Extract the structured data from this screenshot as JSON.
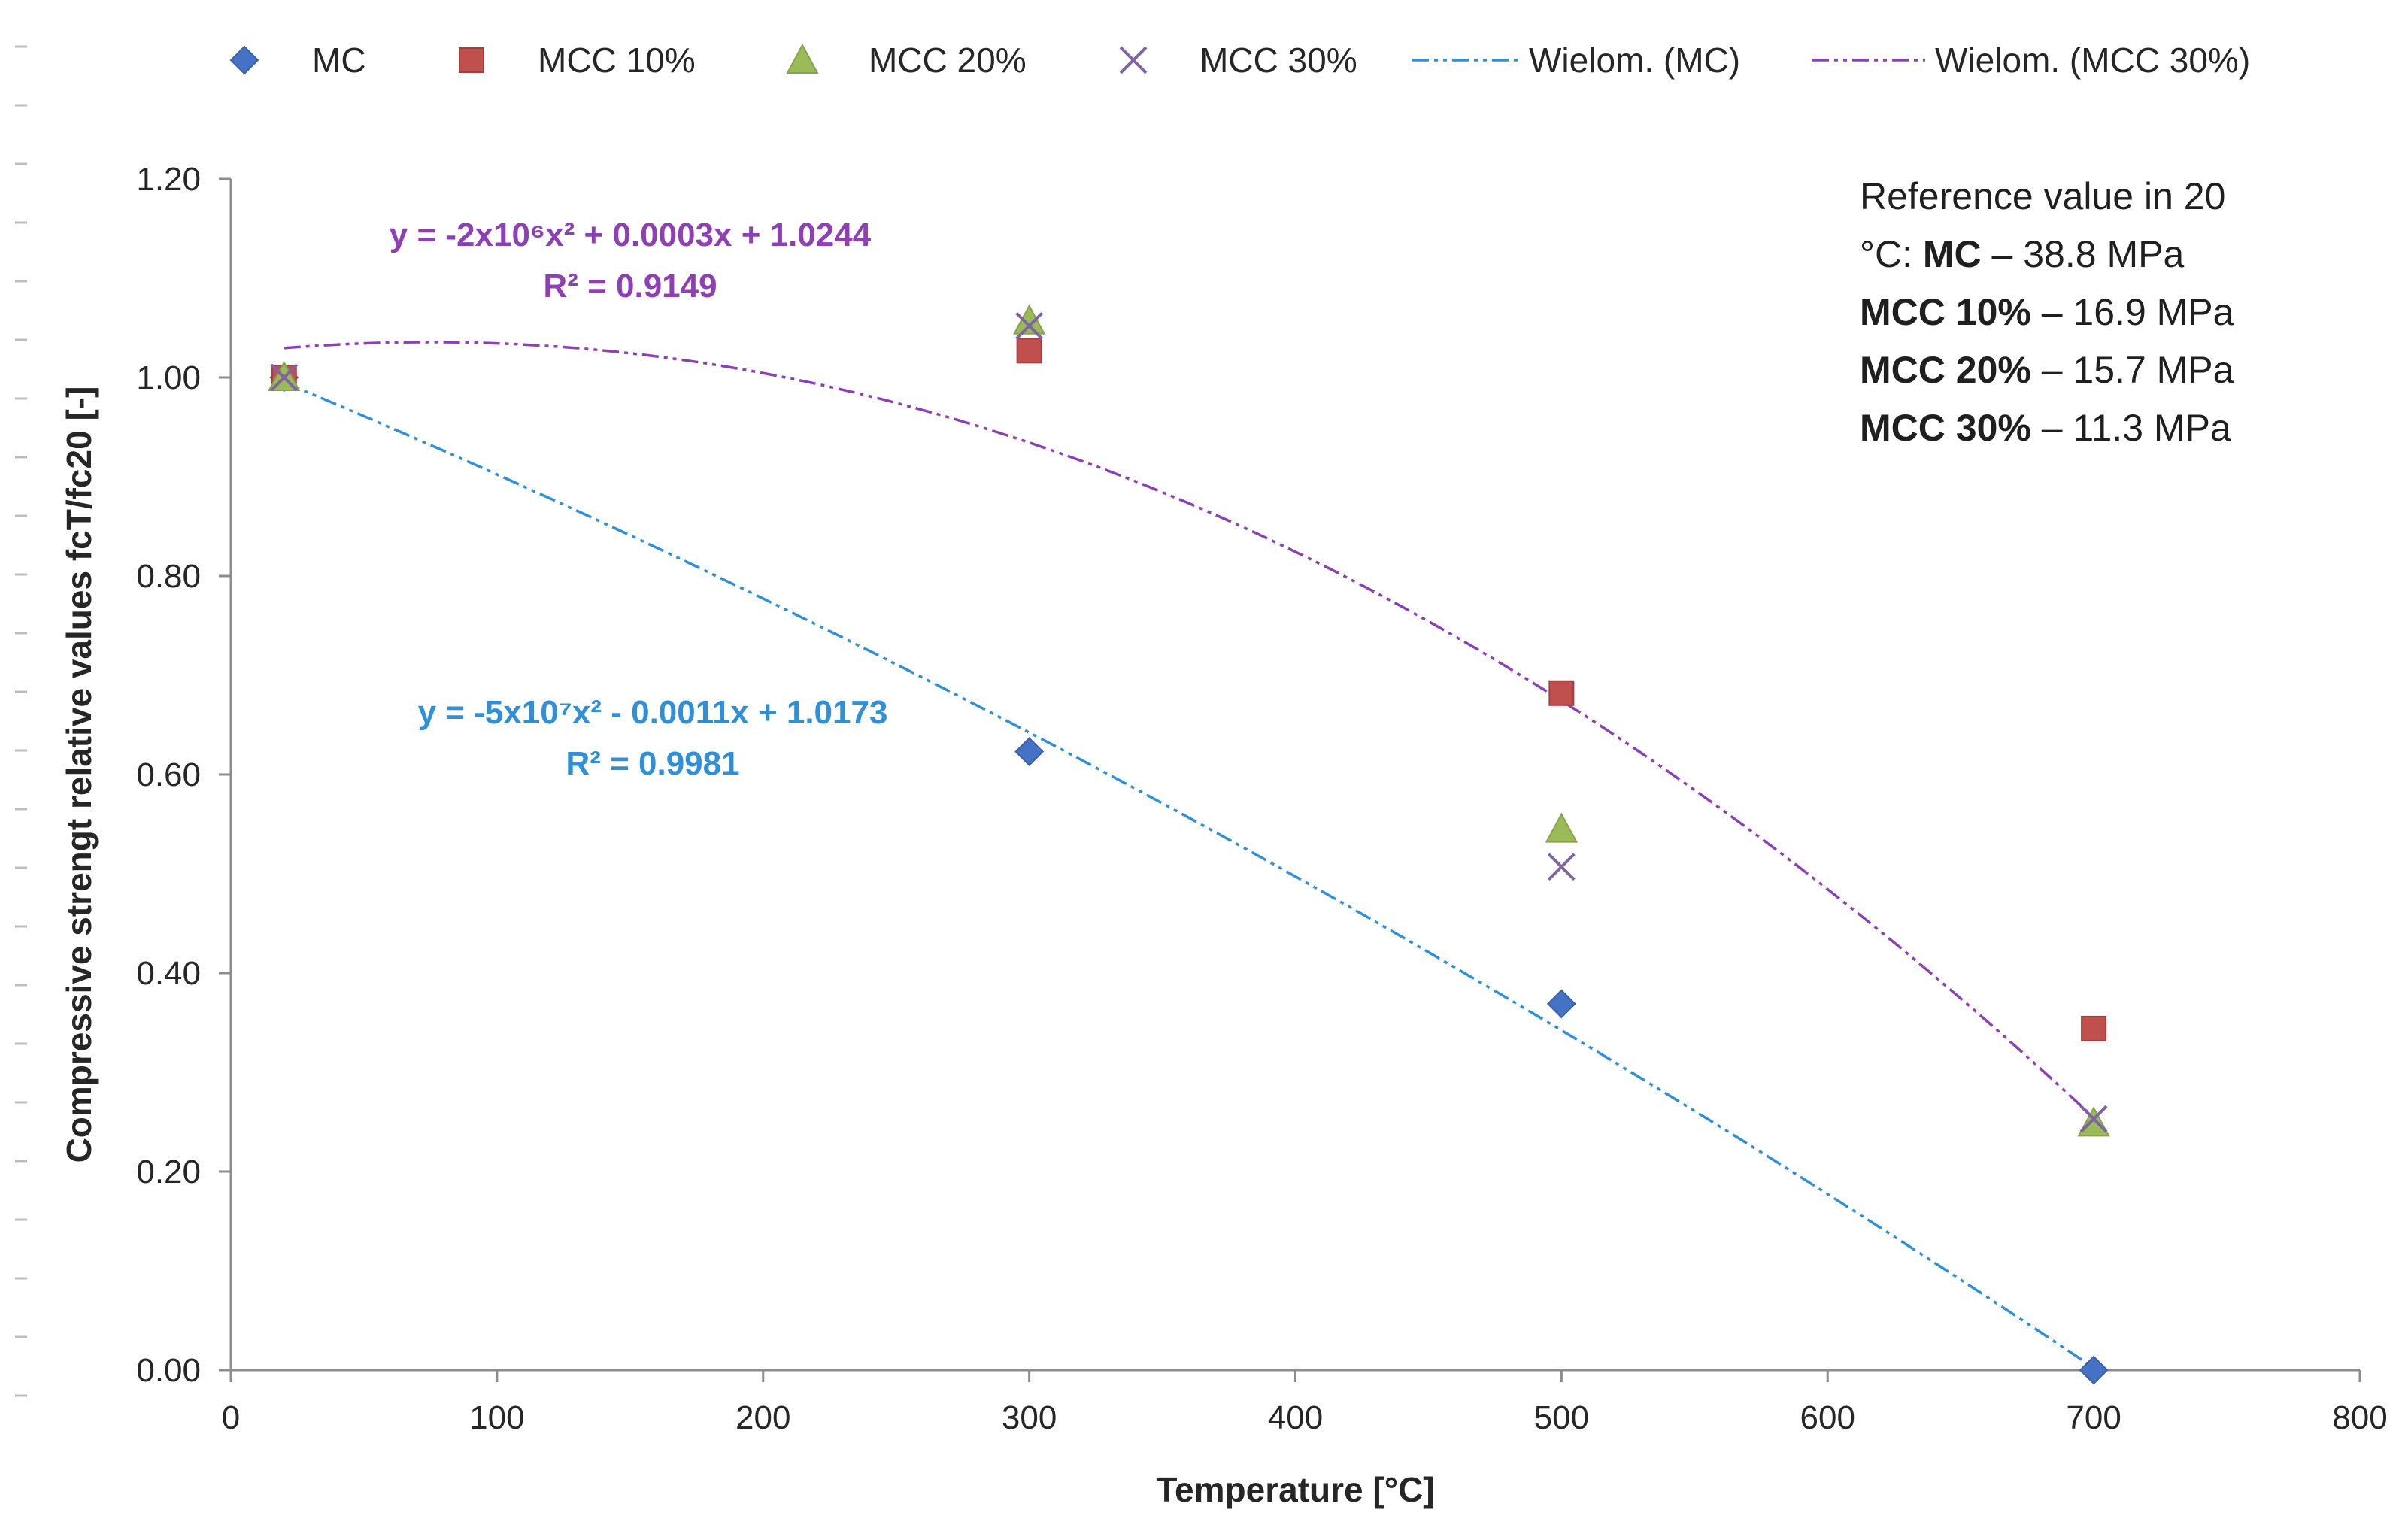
{
  "chart_data": {
    "type": "scatter",
    "xlabel": "Temperature [°C]",
    "ylabel": "Compressive strengt relative values fcT/fc20  [-]",
    "xlim": [
      0,
      800
    ],
    "ylim": [
      0,
      1.2
    ],
    "x_ticks": [
      "0",
      "100",
      "200",
      "300",
      "400",
      "500",
      "600",
      "700",
      "800"
    ],
    "y_ticks": [
      "0.00",
      "0.20",
      "0.40",
      "0.60",
      "0.80",
      "1.00",
      "1.20"
    ],
    "grid": false,
    "legend_position": "top",
    "series": [
      {
        "name": "MC",
        "marker": "diamond",
        "color": "#4472C4",
        "x": [
          20,
          300,
          500,
          700
        ],
        "y": [
          1.0,
          0.623,
          0.369,
          0.0
        ]
      },
      {
        "name": "MCC 10%",
        "marker": "square",
        "color": "#C0504D",
        "x": [
          20,
          300,
          500,
          700
        ],
        "y": [
          1.0,
          1.027,
          0.682,
          0.344
        ]
      },
      {
        "name": "MCC 20%",
        "marker": "triangle",
        "color": "#9BBB59",
        "x": [
          20,
          300,
          500,
          700
        ],
        "y": [
          1.0,
          1.057,
          0.545,
          0.249
        ]
      },
      {
        "name": "MCC 30%",
        "marker": "x",
        "color": "#8064A2",
        "x": [
          20,
          300,
          500,
          700
        ],
        "y": [
          1.0,
          1.052,
          0.507,
          0.253
        ]
      }
    ],
    "trendlines": [
      {
        "name": "Wielom. (MC)",
        "color": "#2F8FD8",
        "coefficients": [
          -5e-07,
          -0.0011,
          1.0173
        ],
        "x_range": [
          20,
          700
        ],
        "equation": "y = -5x10⁷x² - 0.0011x + 1.0173",
        "r2": "R² = 0.9981"
      },
      {
        "name": "Wielom. (MCC 30%)",
        "color": "#8E3FB5",
        "coefficients": [
          -2e-06,
          0.0003,
          1.0244
        ],
        "x_range": [
          20,
          700
        ],
        "equation": "y = -2x10⁶x² + 0.0003x + 1.0244",
        "r2": "R² = 0.9149"
      }
    ],
    "annotation": {
      "lines": [
        [
          {
            "text": "Reference value in 20",
            "bold": false
          }
        ],
        [
          {
            "text": "°C: ",
            "bold": false
          },
          {
            "text": "MC",
            "bold": true
          },
          {
            "text": " – 38.8 MPa",
            "bold": false
          }
        ],
        [
          {
            "text": "MCC 10%",
            "bold": true
          },
          {
            "text": " – 16.9 MPa",
            "bold": false
          }
        ],
        [
          {
            "text": "MCC 20%",
            "bold": true
          },
          {
            "text": " – 15.7 MPa",
            "bold": false
          }
        ],
        [
          {
            "text": "MCC 30%",
            "bold": true
          },
          {
            "text": " – 11.3 MPa",
            "bold": false
          }
        ]
      ]
    }
  }
}
